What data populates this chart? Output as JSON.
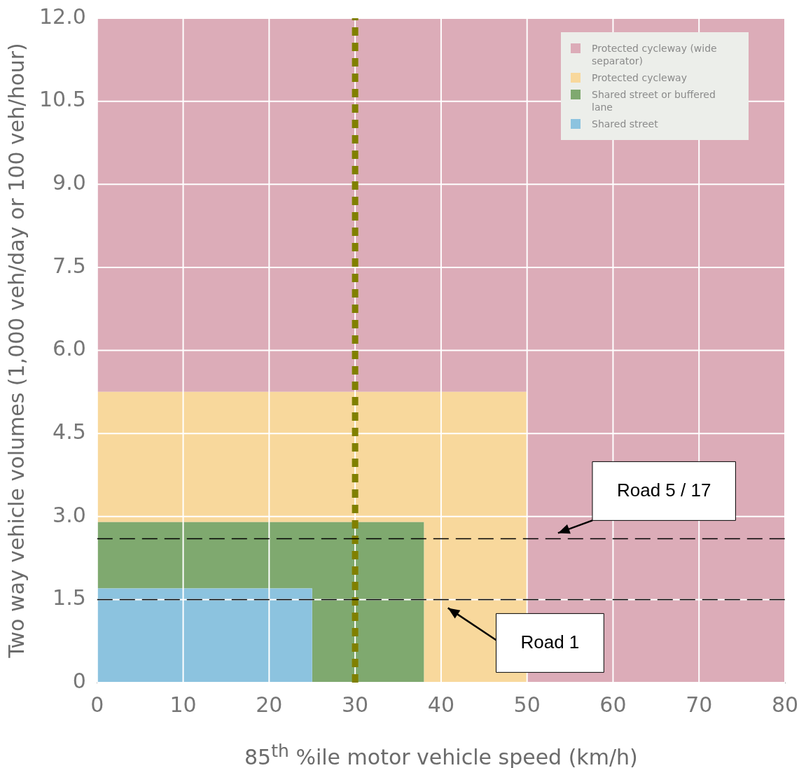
{
  "chart_data": {
    "type": "area",
    "stacked": true,
    "xlabel": "85$^{th}$ %ile motor vehicle speed (km/h)",
    "ylabel": "Two way vehicle volumes (1,000 veh/day or 100 veh/hour)",
    "x": [
      0,
      25,
      25,
      38,
      38,
      50,
      50,
      80
    ],
    "series": [
      {
        "name": "Shared street",
        "color": "#8cc3df",
        "values": [
          1.7,
          1.7,
          0,
          0,
          0,
          0,
          0,
          0
        ]
      },
      {
        "name": "Shared street or buffered lane",
        "color": "#7fa96f",
        "values": [
          1.2,
          1.2,
          2.9,
          2.9,
          0,
          0,
          0,
          0
        ]
      },
      {
        "name": "Protected cycleway",
        "color": "#f8d89c",
        "values": [
          2.35,
          2.35,
          2.35,
          2.35,
          5.25,
          5.25,
          0,
          0
        ]
      },
      {
        "name": "Protected cycleway (wide separator)",
        "color": "#dcacb8",
        "values": [
          6.75,
          6.75,
          6.75,
          6.75,
          6.75,
          6.75,
          12,
          12
        ]
      }
    ],
    "xlim": [
      0,
      80
    ],
    "xticks": [
      0,
      10,
      20,
      30,
      40,
      50,
      60,
      70,
      80
    ],
    "ylim": [
      0,
      12
    ],
    "yticks": [
      0,
      1.5,
      {
        "value": 3,
        "label": "3.0"
      },
      4.5,
      {
        "value": 6,
        "label": "6.0"
      },
      7.5,
      {
        "value": 9,
        "label": "9.0"
      },
      10.5,
      {
        "value": 12,
        "label": "12.0"
      }
    ],
    "ref_lines": [
      {
        "axis": "x",
        "value": 30,
        "color": "#808000",
        "line_style": "dotted"
      },
      {
        "axis": "y",
        "value": 2.6,
        "label": "Road 5 / 17",
        "color": "#000000",
        "line_style": "dashed"
      },
      {
        "axis": "y",
        "value": 1.5,
        "label": "Road 1",
        "color": "#000000",
        "line_style": "dashed"
      }
    ],
    "grid": true,
    "legend": "top right"
  }
}
